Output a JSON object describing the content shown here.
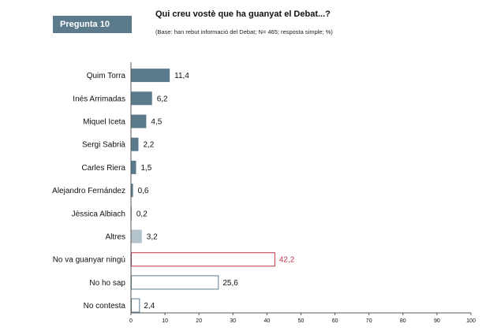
{
  "header": {
    "badge": "Pregunta 10",
    "title": "Qui creu vostè que ha guanyat el Debat...?",
    "subtitle": "(Base: han rebut informació del Debat; N= 465; resposta simple; %)"
  },
  "colors": {
    "candidate": "#5b7a8c",
    "altres": "#b4c2cb",
    "ningu_border": "#c0344a",
    "ningu_label": "#c0344a",
    "outline_border": "#5b7a8c",
    "axis": "#555555"
  },
  "chart_data": {
    "type": "bar",
    "orientation": "horizontal",
    "title": "Qui creu vostè que ha guanyat el Debat...?",
    "categories": [
      "Quim Torra",
      "Inés Arrimadas",
      "Miquel Iceta",
      "Sergi Sabrià",
      "Carles Riera",
      "Alejandro Fernández",
      "Jèssica Albiach",
      "Altres",
      "No va guanyar ningú",
      "No ho sap",
      "No contesta"
    ],
    "values": [
      11.4,
      6.2,
      4.5,
      2.2,
      1.5,
      0.6,
      0.2,
      3.2,
      42.2,
      25.6,
      2.4
    ],
    "value_labels": [
      "11,4",
      "6,2",
      "4,5",
      "2,2",
      "1,5",
      "0,6",
      "0,2",
      "3,2",
      "42,2",
      "25,6",
      "2,4"
    ],
    "bar_styles": [
      "candidate",
      "candidate",
      "candidate",
      "candidate",
      "candidate",
      "candidate",
      "candidate",
      "altres",
      "ningu",
      "outline",
      "outline"
    ],
    "xlim": [
      0,
      100
    ],
    "xticks": [
      0,
      10,
      20,
      30,
      40,
      50,
      60,
      70,
      80,
      90,
      100
    ],
    "grid": false
  }
}
